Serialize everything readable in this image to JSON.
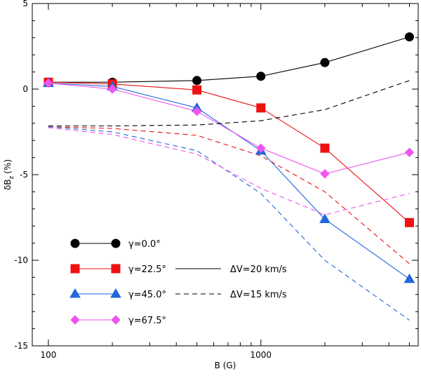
{
  "chart_data": {
    "type": "line",
    "xscale": "log",
    "x": [
      100,
      200,
      500,
      1000,
      2000,
      5000
    ],
    "xlim": [
      84,
      5500
    ],
    "ylim": [
      -15,
      5
    ],
    "xlabel": "B (G)",
    "ylabel": "δB",
    "ylabel_sub": "z",
    "ylabel_unit": "(%)",
    "x_ticks": [
      {
        "value": 100,
        "label": "100"
      },
      {
        "value": 1000,
        "label": "1000"
      }
    ],
    "x_minor_ticks": [
      200,
      300,
      400,
      500,
      600,
      700,
      800,
      900,
      2000,
      3000,
      4000,
      5000
    ],
    "y_ticks": [
      {
        "value": 5,
        "label": "5"
      },
      {
        "value": 0,
        "label": "0"
      },
      {
        "value": -5,
        "label": "-5"
      },
      {
        "value": -10,
        "label": "-10"
      },
      {
        "value": -15,
        "label": "-15"
      }
    ],
    "series": [
      {
        "name": "γ=0.0°",
        "color": "#000000",
        "marker": "circle",
        "linestyle": "solid",
        "values": [
          0.4,
          0.4,
          0.5,
          0.75,
          1.55,
          3.05
        ]
      },
      {
        "name": "γ=22.5°",
        "color": "#ee1111",
        "marker": "square",
        "linestyle": "solid",
        "values": [
          0.4,
          0.3,
          -0.05,
          -1.1,
          -3.45,
          -7.8
        ]
      },
      {
        "name": "γ=45.0°",
        "color": "#2266dd",
        "marker": "triangle",
        "linestyle": "solid",
        "values": [
          0.35,
          0.15,
          -1.1,
          -3.6,
          -7.6,
          -11.1
        ]
      },
      {
        "name": "γ=67.5°",
        "color": "#ee55ee",
        "marker": "diamond",
        "linestyle": "solid",
        "values": [
          0.35,
          0.0,
          -1.3,
          -3.45,
          -4.95,
          -3.7
        ]
      },
      {
        "name": "γ=0.0° ΔV=15 km/s",
        "color": "#000000",
        "marker": "none",
        "linestyle": "dashed",
        "values": [
          -2.15,
          -2.15,
          -2.1,
          -1.85,
          -1.2,
          0.5
        ]
      },
      {
        "name": "γ=22.5° ΔV=15 km/s",
        "color": "#ee1111",
        "marker": "none",
        "linestyle": "dashed",
        "values": [
          -2.2,
          -2.3,
          -2.7,
          -3.9,
          -6.0,
          -10.2
        ]
      },
      {
        "name": "γ=45.0° ΔV=15 km/s",
        "color": "#2266dd",
        "marker": "none",
        "linestyle": "dashed",
        "values": [
          -2.2,
          -2.5,
          -3.6,
          -6.1,
          -10.0,
          -13.5
        ]
      },
      {
        "name": "γ=67.5° ΔV=15 km/s",
        "color": "#ee55ee",
        "marker": "none",
        "linestyle": "dashed",
        "values": [
          -2.25,
          -2.65,
          -3.8,
          -5.8,
          -7.35,
          -6.1
        ]
      }
    ],
    "legend": {
      "placement": "bottom-left",
      "entries": [
        {
          "label": "γ=0.0°",
          "series": 0
        },
        {
          "label": "γ=22.5°",
          "series": 1
        },
        {
          "label": "γ=45.0°",
          "series": 2
        },
        {
          "label": "γ=67.5°",
          "series": 3
        }
      ],
      "style_entries": [
        {
          "label": "ΔV=20 km/s",
          "linestyle": "solid"
        },
        {
          "label": "ΔV=15 km/s",
          "linestyle": "dashed"
        }
      ]
    }
  }
}
